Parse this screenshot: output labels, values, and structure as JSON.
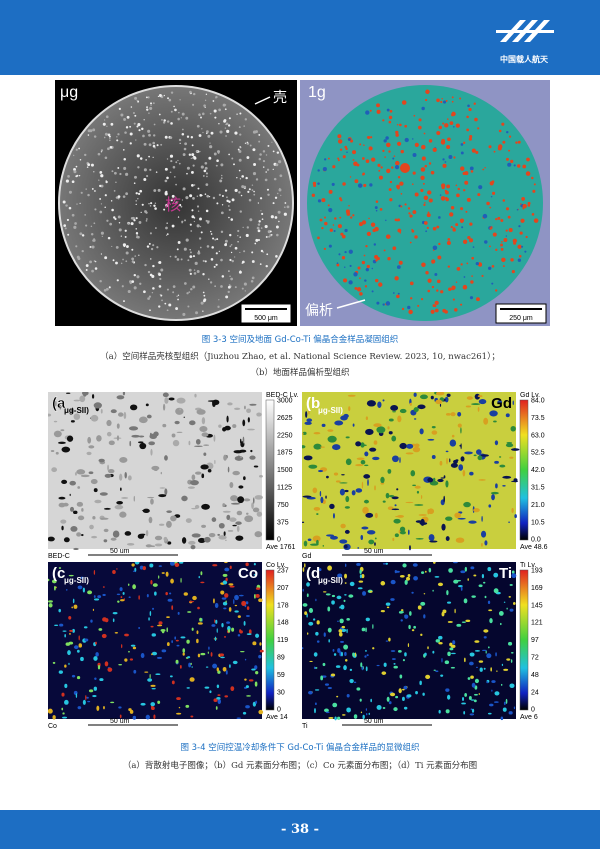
{
  "header": {
    "logo_text": "中国载人航天"
  },
  "figure_3_3": {
    "panels": [
      {
        "label": "μg",
        "annotations": [
          "壳",
          "核"
        ],
        "scale": "500 μm"
      },
      {
        "label": "1g",
        "annotations": [
          "偏析"
        ],
        "scale": "250 μm"
      }
    ],
    "caption": "图 3-3 空间及地面 Gd-Co-Ti 偏晶合金样品凝固组织",
    "notes": [
      "（a）空间样品壳核型组织（Jiuzhou Zhao, et al. National Science Review. 2023, 10, nwac261）；",
      "（b）地面样品偏析型组织"
    ]
  },
  "figure_3_4": {
    "panels": [
      {
        "label": "(a",
        "subscript": "μg-SII)",
        "bar_title": "BED-C Lv.",
        "ticks": [
          "3000",
          "2625",
          "2250",
          "1875",
          "1500",
          "1125",
          "750",
          "375",
          "0"
        ],
        "ave": "Ave 1761",
        "channel": "BED-C",
        "scale": "50 um"
      },
      {
        "label": "(b",
        "subscript": "μg-SII)",
        "element": "Gd",
        "bar_title": "Gd Lv.",
        "ticks": [
          "84.0",
          "73.5",
          "63.0",
          "52.5",
          "42.0",
          "31.5",
          "21.0",
          "10.5",
          "0.0"
        ],
        "ave": "Ave 48.6",
        "channel": "Gd",
        "scale": "50 um"
      },
      {
        "label": "(c",
        "subscript": "μg-SII)",
        "element": "Co",
        "bar_title": "Co Lv.",
        "ticks": [
          "237",
          "207",
          "178",
          "148",
          "119",
          "89",
          "59",
          "30",
          "0"
        ],
        "ave": "Ave 14",
        "channel": "Co",
        "scale": "50 um"
      },
      {
        "label": "(d",
        "subscript": "μg-SII)",
        "element": "Ti",
        "bar_title": "Ti Lv.",
        "ticks": [
          "193",
          "169",
          "145",
          "121",
          "97",
          "72",
          "48",
          "24",
          "0"
        ],
        "ave": "Ave 6",
        "channel": "Ti",
        "scale": "50 um"
      }
    ],
    "caption": "图 3-4 空间控温冷却条件下 Gd-Co-Ti 偏晶合金样品的显微组织",
    "notes": "（a）背散射电子图像；（b）Gd 元素面分布图；（c）Co 元素面分布图；（d）Ti 元素面分布图"
  },
  "footer": {
    "page_number": "- 38 -"
  }
}
